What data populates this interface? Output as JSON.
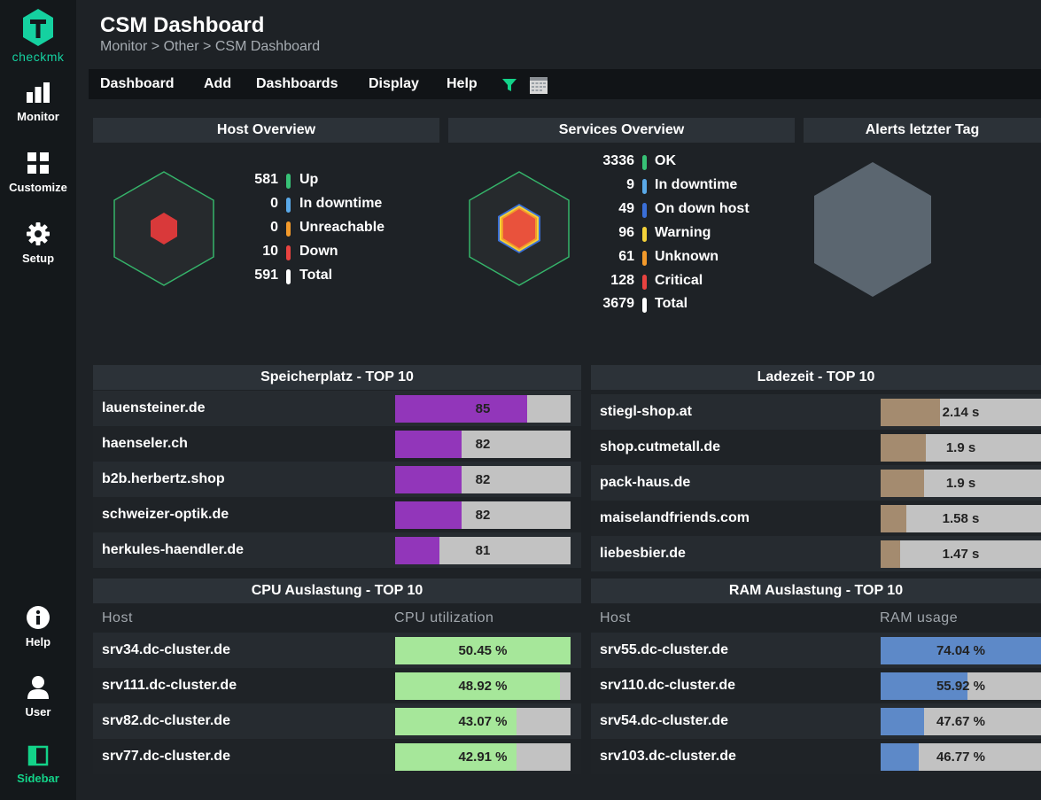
{
  "nav": {
    "logo_text": "checkmk",
    "items": [
      {
        "label": "Monitor"
      },
      {
        "label": "Customize"
      },
      {
        "label": "Setup"
      },
      {
        "label": "Help"
      },
      {
        "label": "User"
      },
      {
        "label": "Sidebar"
      }
    ]
  },
  "header": {
    "title": "CSM Dashboard",
    "breadcrumb": "Monitor > Other > CSM Dashboard"
  },
  "menu": [
    "Dashboard",
    "Add",
    "Dashboards",
    "Display",
    "Help"
  ],
  "host_overview": {
    "title": "Host Overview",
    "stats": [
      {
        "num": "581",
        "label": "Up",
        "color": "#37c176"
      },
      {
        "num": "0",
        "label": "In downtime",
        "color": "#5aa9e8"
      },
      {
        "num": "0",
        "label": "Unreachable",
        "color": "#f39a2b"
      },
      {
        "num": "10",
        "label": "Down",
        "color": "#e94340"
      },
      {
        "num": "591",
        "label": "Total",
        "color": "#ffffff"
      }
    ]
  },
  "services_overview": {
    "title": "Services Overview",
    "stats": [
      {
        "num": "3336",
        "label": "OK",
        "color": "#37c176"
      },
      {
        "num": "9",
        "label": "In downtime",
        "color": "#5aa9e8"
      },
      {
        "num": "49",
        "label": "On down host",
        "color": "#3a6fd8"
      },
      {
        "num": "96",
        "label": "Warning",
        "color": "#f4d23a"
      },
      {
        "num": "61",
        "label": "Unknown",
        "color": "#f39a2b"
      },
      {
        "num": "128",
        "label": "Critical",
        "color": "#e94340"
      },
      {
        "num": "3679",
        "label": "Total",
        "color": "#ffffff"
      }
    ]
  },
  "alerts": {
    "title": "Alerts letzter Tag"
  },
  "storage": {
    "title": "Speicherplatz - TOP 10",
    "color": "#9236ba",
    "rows": [
      {
        "host": "lauensteiner.de",
        "value": "85",
        "fraction": 0.75
      },
      {
        "host": "haenseler.ch",
        "value": "82",
        "fraction": 0.38
      },
      {
        "host": "b2b.herbertz.shop",
        "value": "82",
        "fraction": 0.38
      },
      {
        "host": "schweizer-optik.de",
        "value": "82",
        "fraction": 0.38
      },
      {
        "host": "herkules-haendler.de",
        "value": "81",
        "fraction": 0.25
      }
    ]
  },
  "loadtime": {
    "title": "Ladezeit - TOP 10",
    "color": "#a48b6f",
    "rows": [
      {
        "host": "stiegl-shop.at",
        "value": "2.14 s",
        "fraction": 0.37
      },
      {
        "host": "shop.cutmetall.de",
        "value": "1.9 s",
        "fraction": 0.28
      },
      {
        "host": "pack-haus.de",
        "value": "1.9 s",
        "fraction": 0.27
      },
      {
        "host": "maiselandfriends.com",
        "value": "1.58 s",
        "fraction": 0.16
      },
      {
        "host": "liebesbier.de",
        "value": "1.47 s",
        "fraction": 0.12
      }
    ]
  },
  "cpu": {
    "title": "CPU Auslastung - TOP 10",
    "col_host": "Host",
    "col_value": "CPU utilization",
    "color": "#a6e79a",
    "rows": [
      {
        "host": "srv34.dc-cluster.de",
        "value": "50.45 %",
        "fraction": 1.0
      },
      {
        "host": "srv111.dc-cluster.de",
        "value": "48.92 %",
        "fraction": 0.94
      },
      {
        "host": "srv82.dc-cluster.de",
        "value": "43.07 %",
        "fraction": 0.69
      },
      {
        "host": "srv77.dc-cluster.de",
        "value": "42.91 %",
        "fraction": 0.69
      }
    ]
  },
  "ram": {
    "title": "RAM Auslastung - TOP 10",
    "col_host": "Host",
    "col_value": "RAM usage",
    "color": "#5d89c8",
    "rows": [
      {
        "host": "srv55.dc-cluster.de",
        "value": "74.04 %",
        "fraction": 1.0
      },
      {
        "host": "srv110.dc-cluster.de",
        "value": "55.92 %",
        "fraction": 0.54
      },
      {
        "host": "srv54.dc-cluster.de",
        "value": "47.67 %",
        "fraction": 0.27
      },
      {
        "host": "srv103.dc-cluster.de",
        "value": "46.77 %",
        "fraction": 0.24
      }
    ]
  }
}
